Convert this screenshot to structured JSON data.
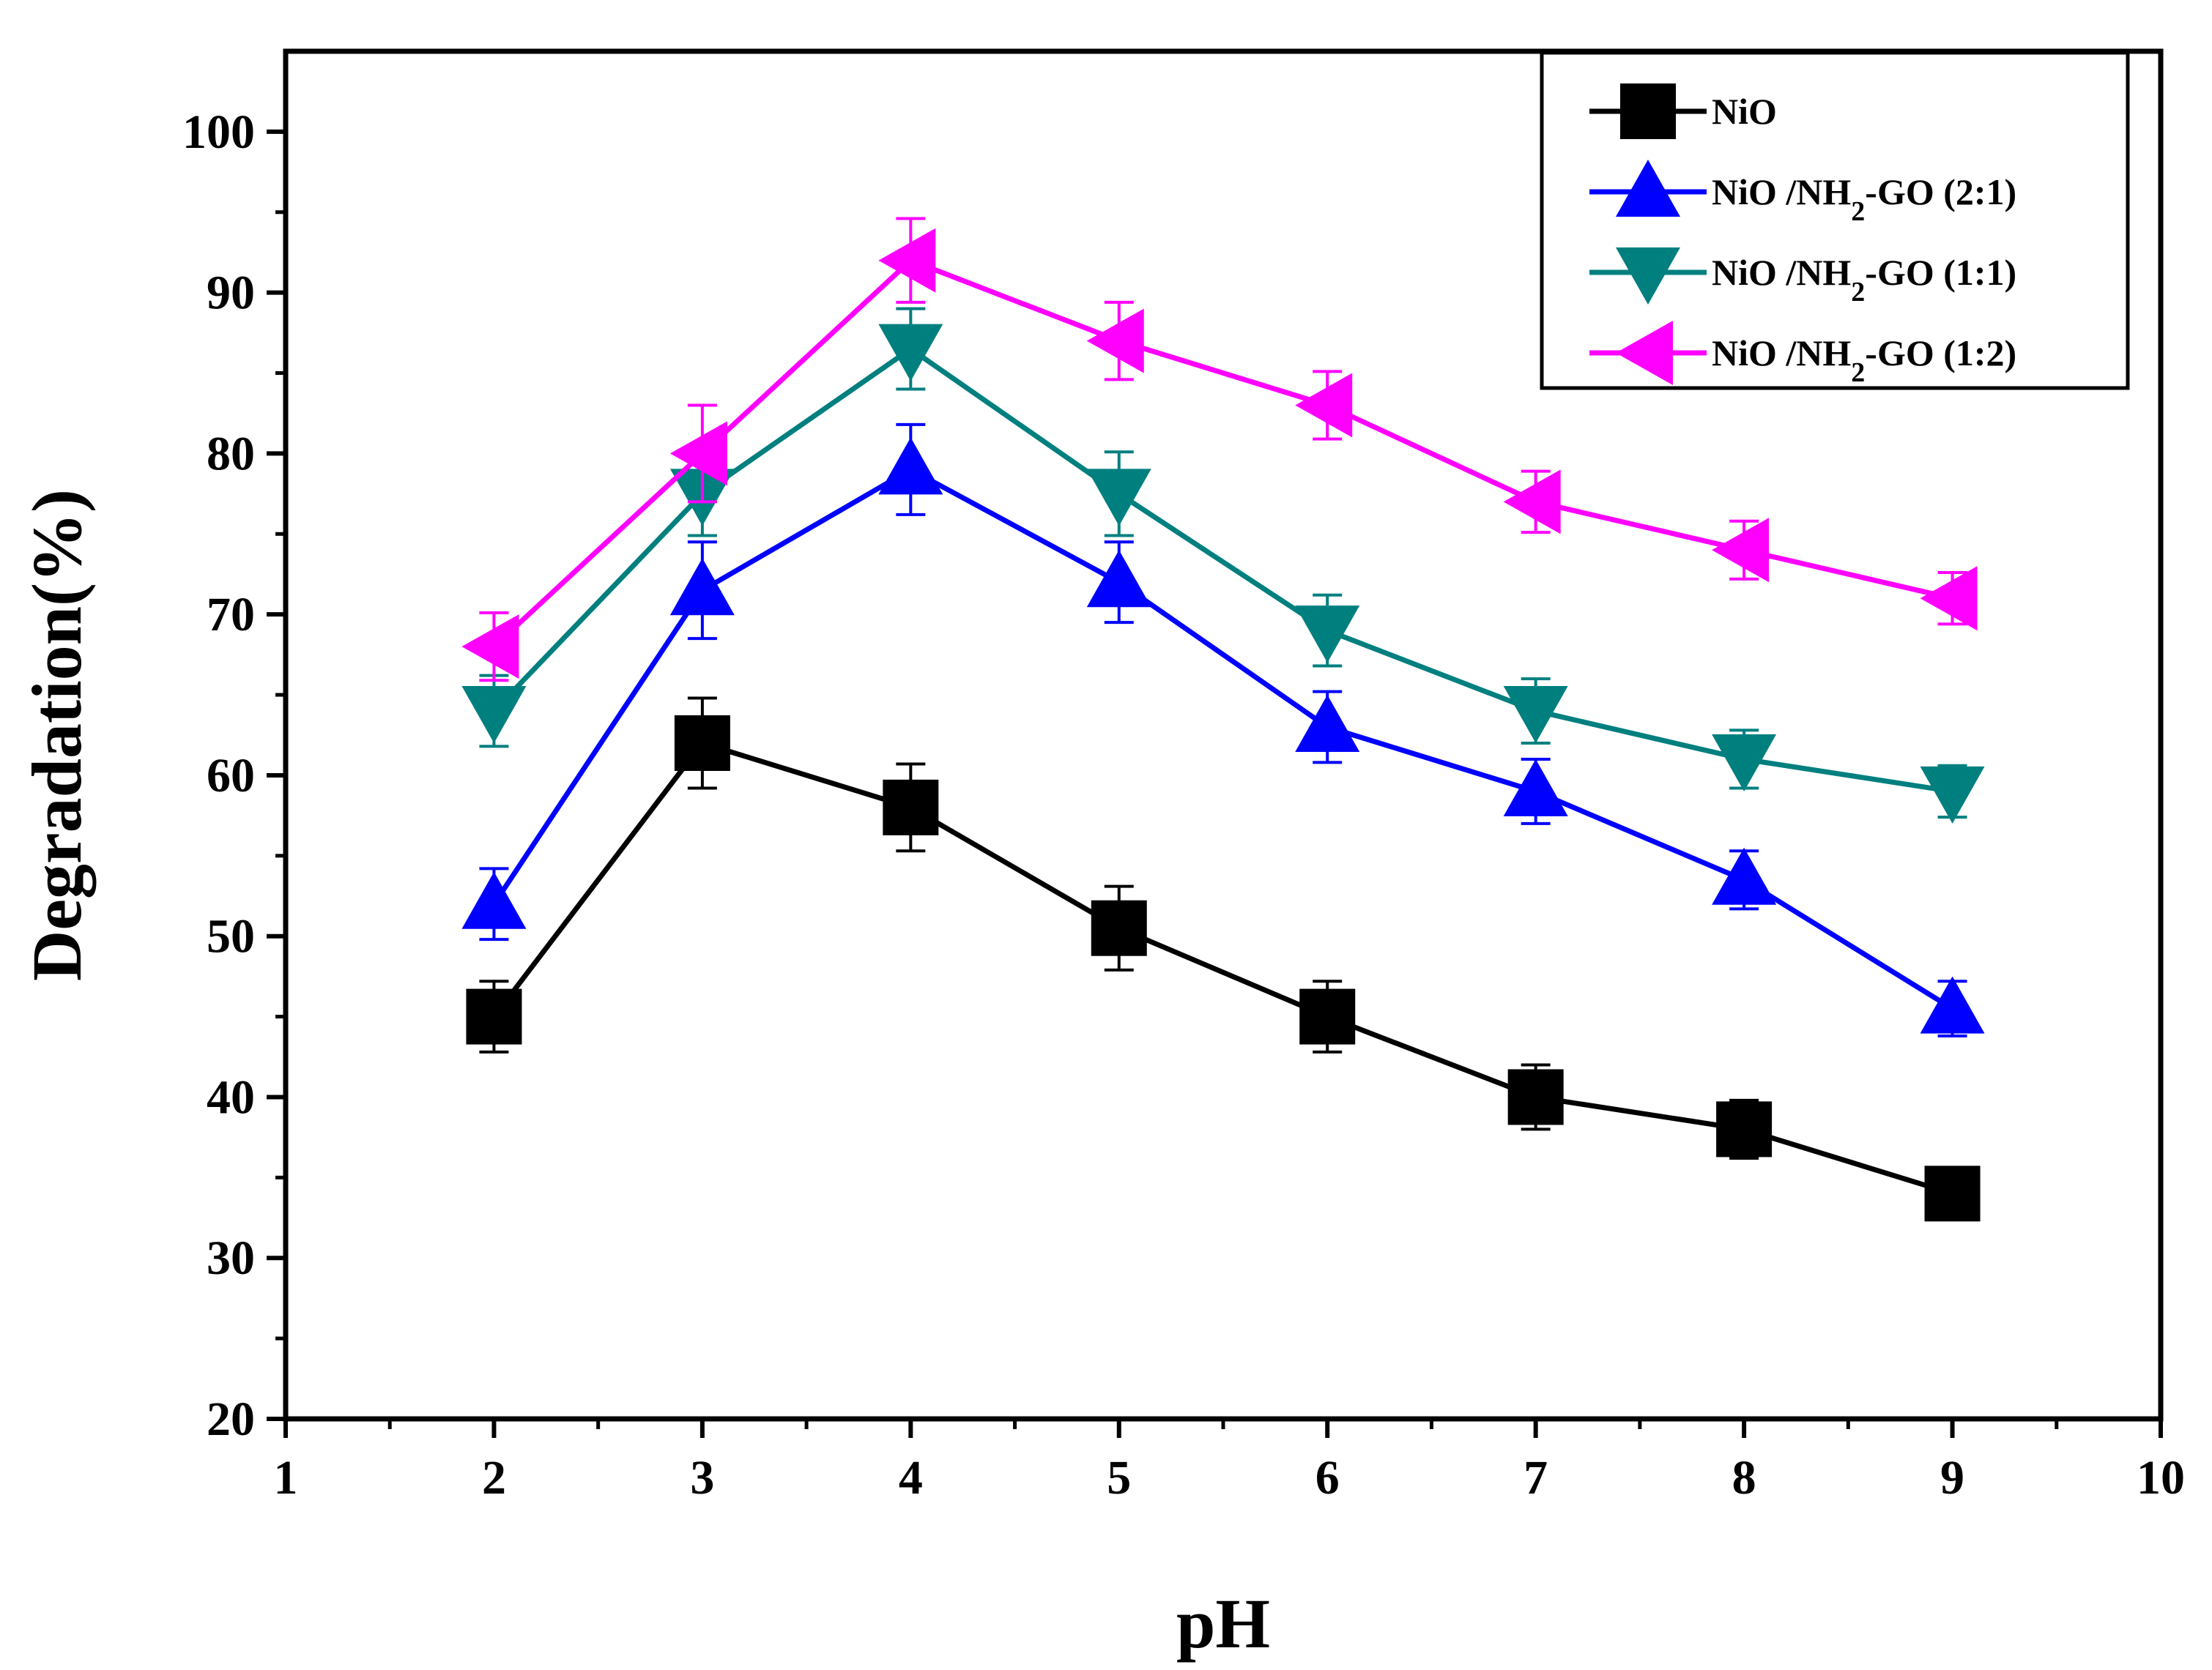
{
  "chart_data": {
    "type": "line",
    "xlabel": "pH",
    "ylabel": "Degradation(%)",
    "xlim": [
      1,
      10
    ],
    "ylim": [
      20,
      105
    ],
    "xticks": [
      "1",
      "2",
      "3",
      "4",
      "5",
      "6",
      "7",
      "8",
      "9",
      "10"
    ],
    "yticks": [
      "20",
      "30",
      "40",
      "50",
      "60",
      "70",
      "80",
      "90",
      "100"
    ],
    "legend_position": "top-right",
    "grid": false,
    "x": [
      2,
      3,
      4,
      5,
      6,
      7,
      8,
      9
    ],
    "series": [
      {
        "name": "NiO",
        "name_html": "NiO",
        "color": "#000000",
        "marker": "square",
        "values": [
          45,
          62,
          58,
          50.5,
          45,
          40,
          38,
          34
        ],
        "errors": [
          2.2,
          2.8,
          2.7,
          2.6,
          2.2,
          2.0,
          1.8,
          1.6
        ]
      },
      {
        "name": "NiO /NH2-GO (2:1)",
        "name_parts": [
          "NiO /NH",
          "2",
          "-GO (2:1)"
        ],
        "color": "#0000ff",
        "marker": "triangle-up",
        "values": [
          52,
          71.5,
          79,
          72,
          63,
          59,
          53.5,
          45.5
        ],
        "errors": [
          2.2,
          3.0,
          2.8,
          2.5,
          2.2,
          2.0,
          1.8,
          1.7
        ]
      },
      {
        "name": "NiO /NH2-GO (1:1)",
        "name_parts": [
          "NiO /NH",
          "2",
          "-GO (1:1)"
        ],
        "color": "#007f7f",
        "marker": "triangle-down",
        "values": [
          64,
          77.5,
          86.5,
          77.5,
          69,
          64,
          61,
          59
        ],
        "errors": [
          2.2,
          2.6,
          2.5,
          2.6,
          2.2,
          2.0,
          1.8,
          1.6
        ]
      },
      {
        "name": "NiO /NH2-GO (1:2)",
        "name_parts": [
          "NiO /NH",
          "2",
          "-GO (1:2)"
        ],
        "color": "#ff00ff",
        "marker": "triangle-left",
        "values": [
          68,
          80,
          92,
          87,
          83,
          77,
          74,
          71
        ],
        "errors": [
          2.1,
          3.0,
          2.6,
          2.4,
          2.1,
          1.9,
          1.8,
          1.6
        ]
      }
    ]
  }
}
